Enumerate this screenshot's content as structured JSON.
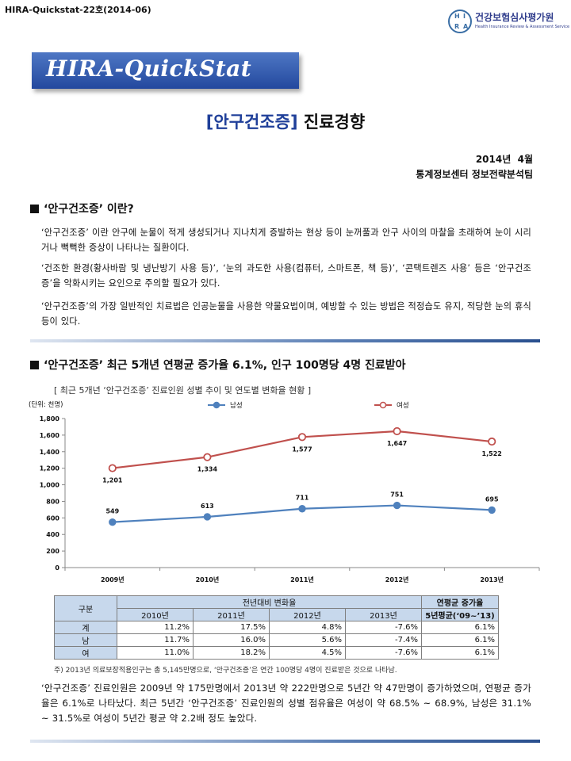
{
  "header": {
    "doc_id": "HIRA-Quickstat-22호(2014-06)",
    "logo_letters": [
      "H",
      "I",
      "R",
      "A"
    ],
    "logo_name": "건강보험심사평가원",
    "logo_sub": "Health Insurance Review & Assessment Service",
    "banner": "HIRA-QuickStat"
  },
  "title": {
    "bracketed": "[안구건조증]",
    "rest": " 진료경향"
  },
  "date": "2014년  4월",
  "department": "통계정보센터 정보전략분석팀",
  "section1": {
    "heading": "‘안구건조증’ 이란?",
    "paragraphs": [
      "‘안구건조증’ 이란 안구에 눈물이 적게 생성되거나 지나치게 증발하는 현상 등이 눈꺼풀과 안구 사이의 마찰을 초래하여 눈이 시리거나 뻑뻑한 증상이 나타나는 질환이다.",
      "‘건조한 환경(황사바람 및 냉난방기 사용 등)’, ‘눈의 과도한 사용(컴퓨터, 스마트폰, 책 등)’, ‘콘택트렌즈 사용’ 등은 ‘안구건조증’을 악화시키는 요인으로 주의할 필요가 있다.",
      "‘안구건조증’의 가장 일반적인 치료법은 인공눈물을 사용한 약물요법이며, 예방할 수 있는 방법은 적정습도 유지, 적당한 눈의 휴식 등이 있다."
    ]
  },
  "section2": {
    "heading": "‘안구건조증’ 최근 5개년 연평균 증가율 6.1%, 인구 100명당 4명 진료받아",
    "caption": "[ 최근 5개년 ‘안구건조증’ 진료인원 성별 추이 및 연도별 변화율 현황 ]"
  },
  "chart_data": {
    "type": "line",
    "unit_label": "(단위: 천명)",
    "categories": [
      "2009년",
      "2010년",
      "2011년",
      "2012년",
      "2013년"
    ],
    "ylim": [
      0,
      1800
    ],
    "yticks": [
      "0",
      "200",
      "400",
      "600",
      "800",
      "1,000",
      "1,200",
      "1,400",
      "1,600",
      "1,800"
    ],
    "legend_position": "top",
    "series": [
      {
        "name": "남성",
        "color": "#4f81bd",
        "values": [
          549,
          613,
          711,
          751,
          695
        ],
        "labels": [
          "549",
          "613",
          "711",
          "751",
          "695"
        ]
      },
      {
        "name": "여성",
        "color": "#c0504d",
        "values": [
          1201,
          1334,
          1577,
          1647,
          1522
        ],
        "labels": [
          "1,201",
          "1,334",
          "1,577",
          "1,647",
          "1,522"
        ]
      }
    ]
  },
  "table": {
    "corner": "구분",
    "group_header": "전년대비 변화율",
    "avg_header": "연평균 증가율",
    "years": [
      "2010년",
      "2011년",
      "2012년",
      "2013년"
    ],
    "avg_period": "5년평균(‘09~’13)",
    "rows": [
      {
        "label": "계",
        "values": [
          "11.2%",
          "17.5%",
          "4.8%",
          "-7.6%",
          "6.1%"
        ]
      },
      {
        "label": "남",
        "values": [
          "11.7%",
          "16.0%",
          "5.6%",
          "-7.4%",
          "6.1%"
        ]
      },
      {
        "label": "여",
        "values": [
          "11.0%",
          "18.2%",
          "4.5%",
          "-7.6%",
          "6.1%"
        ]
      }
    ]
  },
  "note": "주) 2013년 의료보장적용인구는 총 5,145만명으로, ‘안구건조증’은 연간 100명당 4명이 진료받은 것으로 나타남.",
  "summary": "‘안구건조증’ 진료인원은 2009년 약 175만명에서 2013년 약 222만명으로 5년간 약 47만명이 증가하였으며, 연평균 증가율은 6.1%로 나타났다. 최근 5년간 ‘안구건조증’ 진료인원의 성별 점유율은 여성이 약 68.5% ~ 68.9%, 남성은 31.1% ~ 31.5%로 여성이 5년간 평균 약 2.2배 정도 높았다."
}
